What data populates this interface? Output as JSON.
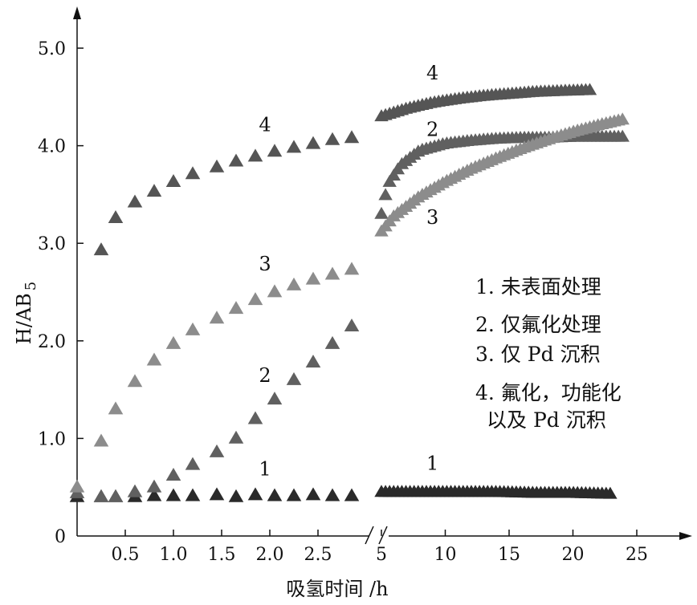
{
  "chart_data": {
    "type": "scatter",
    "xlabel": "吸氢时间 /h",
    "ylabel": "H/AB",
    "ylabel_sub": "5",
    "ylim": [
      0,
      5.0
    ],
    "y_ticks": [
      "0",
      "1.0",
      "2.0",
      "3.0",
      "4.0",
      "5.0"
    ],
    "segments": [
      {
        "xlim": [
          0,
          3.0
        ],
        "x_ticks": [
          "0.5",
          "1.0",
          "1.5",
          "2.0",
          "2.5"
        ],
        "tick_values": [
          0.5,
          1.0,
          1.5,
          2.0,
          2.5
        ]
      },
      {
        "xlim": [
          5,
          27.5
        ],
        "x_ticks": [
          "5",
          "10",
          "15",
          "20",
          "25"
        ],
        "tick_values": [
          5,
          10,
          15,
          20,
          25
        ]
      }
    ],
    "axis_break": "//",
    "series": [
      {
        "name": "1",
        "color": "#2a2a2a",
        "segment1": {
          "x": [
            0.0,
            0.25,
            0.4,
            0.6,
            0.8,
            1.0,
            1.2,
            1.45,
            1.65,
            1.85,
            2.05,
            2.25,
            2.45,
            2.65,
            2.85
          ],
          "y": [
            0.4,
            0.4,
            0.4,
            0.4,
            0.41,
            0.41,
            0.41,
            0.42,
            0.4,
            0.42,
            0.41,
            0.41,
            0.42,
            0.41,
            0.41
          ]
        },
        "segment2": {
          "x": [
            5.0,
            8.0,
            11.0,
            14.0,
            17.0,
            20.0,
            23.0
          ],
          "y": [
            0.45,
            0.45,
            0.45,
            0.45,
            0.44,
            0.44,
            0.43
          ]
        }
      },
      {
        "name": "2",
        "color": "#606060",
        "segment1": {
          "x": [
            0.0,
            0.25,
            0.4,
            0.6,
            0.8,
            1.0,
            1.2,
            1.45,
            1.65,
            1.85,
            2.05,
            2.25,
            2.45,
            2.65,
            2.85
          ],
          "y": [
            0.44,
            0.4,
            0.4,
            0.45,
            0.5,
            0.62,
            0.73,
            0.86,
            1.0,
            1.2,
            1.4,
            1.6,
            1.78,
            1.97,
            2.15
          ]
        },
        "segment2": {
          "x": [
            5.0,
            5.5,
            6.5,
            8.0,
            10.0,
            12.0,
            14.0,
            16.0,
            18.0,
            20.0,
            22.0,
            24.0
          ],
          "y": [
            3.3,
            3.6,
            3.8,
            3.95,
            4.02,
            4.05,
            4.07,
            4.08,
            4.08,
            4.09,
            4.09,
            4.09
          ]
        }
      },
      {
        "name": "3",
        "color": "#8c8c8c",
        "segment1": {
          "x": [
            0.0,
            0.25,
            0.4,
            0.6,
            0.8,
            1.0,
            1.2,
            1.45,
            1.65,
            1.85,
            2.05,
            2.25,
            2.45,
            2.65,
            2.85
          ],
          "y": [
            0.5,
            0.97,
            1.3,
            1.58,
            1.8,
            1.97,
            2.11,
            2.23,
            2.33,
            2.42,
            2.5,
            2.57,
            2.63,
            2.68,
            2.73
          ]
        },
        "segment2": {
          "x": [
            5.0,
            6.0,
            8.0,
            10.0,
            12.0,
            14.0,
            16.0,
            18.0,
            20.0,
            22.0,
            24.0
          ],
          "y": [
            3.12,
            3.28,
            3.48,
            3.63,
            3.76,
            3.87,
            3.97,
            4.06,
            4.14,
            4.21,
            4.27
          ]
        }
      },
      {
        "name": "4",
        "color": "#555555",
        "segment1": {
          "x": [
            0.25,
            0.4,
            0.6,
            0.8,
            1.0,
            1.2,
            1.45,
            1.65,
            1.85,
            2.05,
            2.25,
            2.45,
            2.65,
            2.85
          ],
          "y": [
            2.93,
            3.26,
            3.42,
            3.53,
            3.63,
            3.71,
            3.78,
            3.84,
            3.89,
            3.94,
            3.98,
            4.02,
            4.06,
            4.08
          ]
        },
        "segment2": {
          "x": [
            5.0,
            7.0,
            9.0,
            11.0,
            13.0,
            15.0,
            17.0,
            19.0,
            21.5
          ],
          "y": [
            4.3,
            4.38,
            4.44,
            4.48,
            4.51,
            4.53,
            4.55,
            4.56,
            4.57
          ]
        }
      }
    ],
    "annotations": [
      {
        "text": "4",
        "series": "4",
        "at_segment": 1,
        "x": 1.95,
        "y": 4.15
      },
      {
        "text": "3",
        "series": "3",
        "at_segment": 1,
        "x": 1.95,
        "y": 2.72
      },
      {
        "text": "2",
        "series": "2",
        "at_segment": 1,
        "x": 1.95,
        "y": 1.58
      },
      {
        "text": "1",
        "series": "1",
        "at_segment": 1,
        "x": 1.95,
        "y": 0.62
      },
      {
        "text": "4",
        "series": "4",
        "at_segment": 2,
        "x": 9.0,
        "y": 4.68
      },
      {
        "text": "2",
        "series": "2",
        "at_segment": 2,
        "x": 9.0,
        "y": 4.1
      },
      {
        "text": "3",
        "series": "3",
        "at_segment": 2,
        "x": 9.0,
        "y": 3.2
      },
      {
        "text": "1",
        "series": "1",
        "at_segment": 2,
        "x": 9.0,
        "y": 0.68
      }
    ],
    "legend": {
      "position": "right",
      "entries": [
        "1. 未表面处理",
        "2. 仅氟化处理",
        "3. 仅 Pd 沉积",
        "4. 氟化，功能化",
        "以及 Pd 沉积"
      ]
    }
  }
}
